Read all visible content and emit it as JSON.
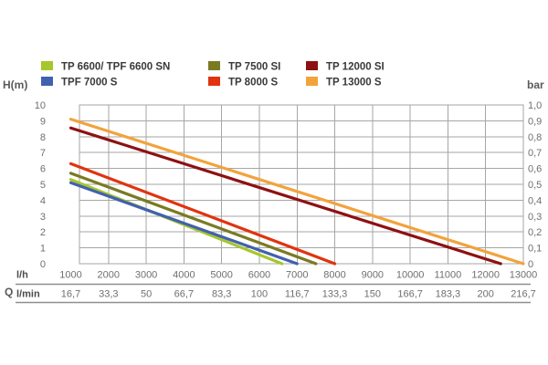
{
  "axes": {
    "left_label": "H(m)",
    "right_label": "bar",
    "q_label": "Q",
    "row1_unit": "l/h",
    "row2_unit": "l/min",
    "left_ticks": [
      "10",
      "9",
      "8",
      "7",
      "6",
      "5",
      "4",
      "3",
      "2",
      "1",
      "0"
    ],
    "right_ticks": [
      "1,0",
      "0,9",
      "0,8",
      "0,7",
      "0,6",
      "0,5",
      "0,4",
      "0,3",
      "0,2",
      "0,1",
      "0"
    ],
    "flow_lh": [
      "1000",
      "2000",
      "3000",
      "4000",
      "5000",
      "6000",
      "7000",
      "8000",
      "9000",
      "10000",
      "11000",
      "12000",
      "13000"
    ],
    "flow_lmin": [
      "16,7",
      "33,3",
      "50",
      "66,7",
      "83,3",
      "100",
      "116,7",
      "133,3",
      "150",
      "166,7",
      "183,3",
      "200",
      "216,7"
    ]
  },
  "chart_data": {
    "type": "line",
    "xlabel": "Q (flow, l/h top row / l/min bottom row)",
    "ylabel": "H(m)",
    "y2label": "bar",
    "xlim_lh": [
      1000,
      13050
    ],
    "ylim": [
      0,
      10
    ],
    "y2lim": [
      0,
      1.0
    ],
    "grid": true,
    "legend_position": "top",
    "x_gridline_step_lh": 1000,
    "y_gridline_step_m": 1,
    "series": [
      {
        "name": "TP 6600/ TPF 6600 SN",
        "color": "#A6C72B",
        "points": [
          [
            1000,
            5.3
          ],
          [
            6600,
            0
          ]
        ]
      },
      {
        "name": "TPF 7000 S",
        "color": "#4161AF",
        "points": [
          [
            1000,
            5.1
          ],
          [
            7000,
            0
          ]
        ]
      },
      {
        "name": "TP 7500 SI",
        "color": "#7A7A23",
        "points": [
          [
            1000,
            5.7
          ],
          [
            7500,
            0
          ]
        ]
      },
      {
        "name": "TP 8000 S",
        "color": "#E1330F",
        "points": [
          [
            1000,
            6.3
          ],
          [
            8000,
            0
          ]
        ]
      },
      {
        "name": "TP 12000 SI",
        "color": "#8E1111",
        "points": [
          [
            1000,
            8.55
          ],
          [
            12400,
            0
          ]
        ]
      },
      {
        "name": "TP 13000 S",
        "color": "#F2A33C",
        "points": [
          [
            1000,
            9.1
          ],
          [
            13000,
            0
          ]
        ]
      }
    ]
  },
  "legend": {
    "columns": [
      [
        "TP 6600/ TPF 6600 SN",
        "TPF 7000 S"
      ],
      [
        "TP 7500 SI",
        "TP 8000 S"
      ],
      [
        "TP 12000 SI",
        "TP 13000 S"
      ]
    ]
  },
  "colors": {
    "background": "#FFFFFF",
    "grid": "#A6A6A6",
    "table_rule": "#8F8F8F",
    "tick_text": "#6F6F6F",
    "label_text": "#5A5A5A",
    "legend_text": "#3A3A3A"
  }
}
